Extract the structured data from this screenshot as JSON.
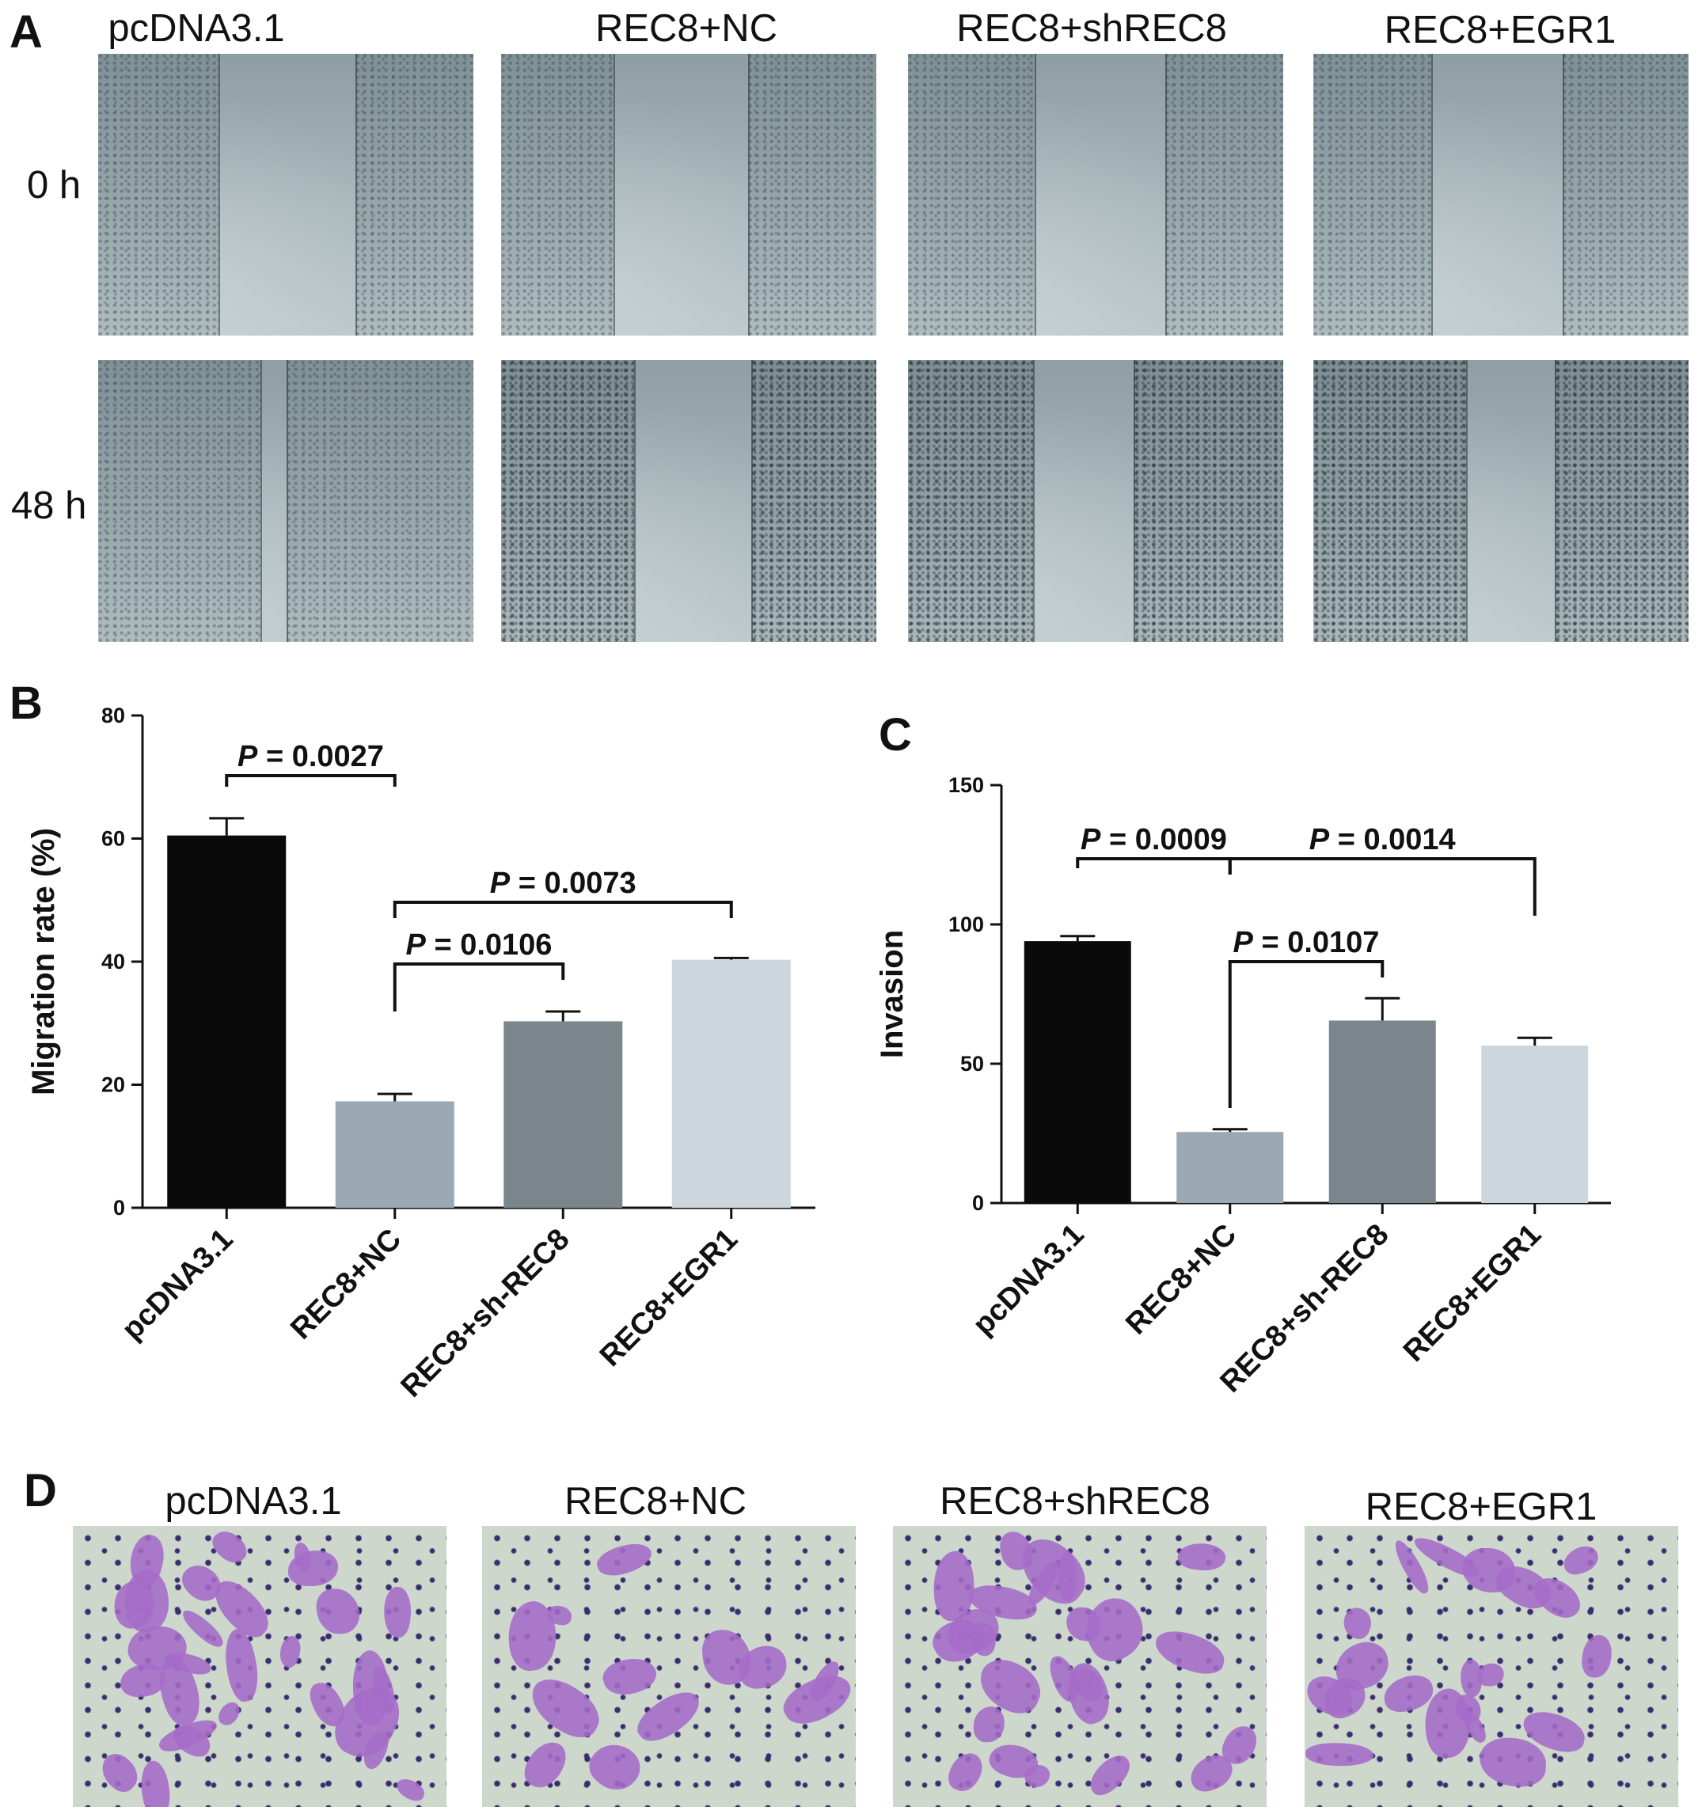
{
  "panels": {
    "a": "A",
    "b": "B",
    "c": "C",
    "d": "D"
  },
  "panel_a": {
    "columns": [
      "pcDNA3.1",
      "REC8+NC",
      "REC8+shREC8",
      "REC8+EGR1"
    ],
    "rows": [
      "0 h",
      "48 h"
    ]
  },
  "panel_d": {
    "columns": [
      "pcDNA3.1",
      "REC8+NC",
      "REC8+shREC8",
      "REC8+EGR1"
    ]
  },
  "colors": {
    "pcDNA3.1": "#0a0a0a",
    "REC8+NC": "#9aa8b4",
    "REC8+sh-REC8": "#7b868c",
    "REC8+EGR1": "#ccd6dc"
  },
  "chart_data": [
    {
      "type": "bar",
      "panel": "B",
      "categories": [
        "pcDNA3.1",
        "REC8+NC",
        "REC8+sh-REC8",
        "REC8+EGR1"
      ],
      "values": [
        60.5,
        17.3,
        30.3,
        40.3
      ],
      "errors": [
        2.8,
        1.2,
        1.6,
        0.3
      ],
      "ylabel": "Migration rate (%)",
      "ylim": [
        0,
        80
      ],
      "yticks": [
        0,
        20,
        40,
        60,
        80
      ],
      "brackets": [
        {
          "from": 0,
          "to": 1,
          "label": "P = 0.0027"
        },
        {
          "from": 1,
          "to": 2,
          "label": "P = 0.0106"
        },
        {
          "from": 1,
          "to": 3,
          "label": "P = 0.0073"
        }
      ]
    },
    {
      "type": "bar",
      "panel": "C",
      "categories": [
        "pcDNA3.1",
        "REC8+NC",
        "REC8+sh-REC8",
        "REC8+EGR1"
      ],
      "values": [
        94,
        25.5,
        65.5,
        56.5
      ],
      "errors": [
        1.8,
        1.0,
        8.0,
        2.8
      ],
      "ylabel": "Invasion",
      "ylim": [
        0,
        150
      ],
      "yticks": [
        0,
        50,
        100,
        150
      ],
      "brackets": [
        {
          "from": 0,
          "to": 1,
          "label": "P = 0.0009"
        },
        {
          "from": 1,
          "to": 3,
          "label": "P = 0.0014"
        },
        {
          "from": 1,
          "to": 2,
          "label": "P = 0.0107"
        }
      ]
    }
  ]
}
